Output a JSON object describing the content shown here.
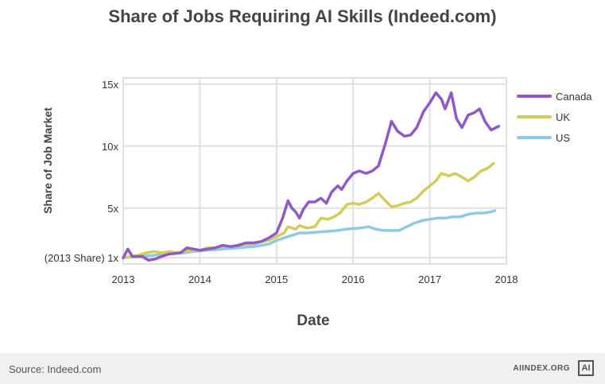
{
  "header": {
    "title": "Share of Jobs Requiring AI Skills (Indeed.com)"
  },
  "footer": {
    "source": "Source: Indeed.com",
    "brand": "AIINDEX.ORG",
    "logo_text": "AI"
  },
  "chart_data": {
    "type": "line",
    "title": "Share of Jobs Requiring AI Skills (Indeed.com)",
    "xlabel": "Date",
    "ylabel": "Share of Job Market",
    "xlim": [
      2013,
      2018
    ],
    "ylim": [
      0.5,
      15.5
    ],
    "xticks": [
      2013,
      2014,
      2015,
      2016,
      2017,
      2018
    ],
    "yticks": [
      {
        "value": 1,
        "label": "(2013 Share) 1x"
      },
      {
        "value": 5,
        "label": "5x"
      },
      {
        "value": 10,
        "label": "10x"
      },
      {
        "value": 15,
        "label": "15x"
      }
    ],
    "grid": true,
    "legend_position": "right",
    "series": [
      {
        "name": "Canada",
        "color": "#8e5ac8",
        "points": [
          [
            2013.0,
            1.0
          ],
          [
            2013.06,
            1.7
          ],
          [
            2013.12,
            1.1
          ],
          [
            2013.25,
            1.1
          ],
          [
            2013.33,
            0.8
          ],
          [
            2013.42,
            0.9
          ],
          [
            2013.5,
            1.1
          ],
          [
            2013.6,
            1.3
          ],
          [
            2013.75,
            1.4
          ],
          [
            2013.83,
            1.8
          ],
          [
            2013.92,
            1.7
          ],
          [
            2014.0,
            1.6
          ],
          [
            2014.1,
            1.7
          ],
          [
            2014.2,
            1.8
          ],
          [
            2014.3,
            2.0
          ],
          [
            2014.4,
            1.9
          ],
          [
            2014.5,
            2.0
          ],
          [
            2014.6,
            2.2
          ],
          [
            2014.7,
            2.2
          ],
          [
            2014.8,
            2.3
          ],
          [
            2014.9,
            2.6
          ],
          [
            2015.0,
            3.0
          ],
          [
            2015.08,
            4.2
          ],
          [
            2015.15,
            5.6
          ],
          [
            2015.2,
            5.0
          ],
          [
            2015.25,
            4.7
          ],
          [
            2015.3,
            4.2
          ],
          [
            2015.35,
            4.9
          ],
          [
            2015.42,
            5.5
          ],
          [
            2015.5,
            5.5
          ],
          [
            2015.58,
            5.8
          ],
          [
            2015.65,
            5.4
          ],
          [
            2015.72,
            6.3
          ],
          [
            2015.8,
            6.8
          ],
          [
            2015.85,
            6.5
          ],
          [
            2015.92,
            7.2
          ],
          [
            2016.0,
            7.8
          ],
          [
            2016.08,
            8.0
          ],
          [
            2016.17,
            7.8
          ],
          [
            2016.25,
            8.0
          ],
          [
            2016.33,
            8.4
          ],
          [
            2016.42,
            10.2
          ],
          [
            2016.5,
            12.0
          ],
          [
            2016.58,
            11.2
          ],
          [
            2016.67,
            10.8
          ],
          [
            2016.75,
            10.9
          ],
          [
            2016.83,
            11.5
          ],
          [
            2016.92,
            12.8
          ],
          [
            2017.0,
            13.5
          ],
          [
            2017.08,
            14.3
          ],
          [
            2017.15,
            13.8
          ],
          [
            2017.2,
            13.0
          ],
          [
            2017.28,
            14.3
          ],
          [
            2017.35,
            12.2
          ],
          [
            2017.42,
            11.5
          ],
          [
            2017.5,
            12.5
          ],
          [
            2017.58,
            12.7
          ],
          [
            2017.65,
            13.0
          ],
          [
            2017.72,
            12.0
          ],
          [
            2017.8,
            11.3
          ],
          [
            2017.9,
            11.6
          ]
        ]
      },
      {
        "name": "UK",
        "color": "#d4cc5a",
        "points": [
          [
            2013.0,
            1.0
          ],
          [
            2013.1,
            1.1
          ],
          [
            2013.2,
            1.2
          ],
          [
            2013.3,
            1.4
          ],
          [
            2013.4,
            1.5
          ],
          [
            2013.5,
            1.4
          ],
          [
            2013.6,
            1.5
          ],
          [
            2013.7,
            1.4
          ],
          [
            2013.8,
            1.5
          ],
          [
            2013.9,
            1.6
          ],
          [
            2014.0,
            1.6
          ],
          [
            2014.1,
            1.8
          ],
          [
            2014.2,
            1.8
          ],
          [
            2014.3,
            1.9
          ],
          [
            2014.4,
            1.9
          ],
          [
            2014.5,
            2.0
          ],
          [
            2014.6,
            2.1
          ],
          [
            2014.7,
            2.1
          ],
          [
            2014.8,
            2.3
          ],
          [
            2014.9,
            2.4
          ],
          [
            2015.0,
            2.7
          ],
          [
            2015.1,
            3.0
          ],
          [
            2015.15,
            3.5
          ],
          [
            2015.25,
            3.3
          ],
          [
            2015.3,
            3.6
          ],
          [
            2015.4,
            3.4
          ],
          [
            2015.5,
            3.5
          ],
          [
            2015.58,
            4.2
          ],
          [
            2015.67,
            4.1
          ],
          [
            2015.75,
            4.3
          ],
          [
            2015.83,
            4.6
          ],
          [
            2015.92,
            5.3
          ],
          [
            2016.0,
            5.4
          ],
          [
            2016.08,
            5.3
          ],
          [
            2016.17,
            5.5
          ],
          [
            2016.25,
            5.8
          ],
          [
            2016.33,
            6.2
          ],
          [
            2016.42,
            5.6
          ],
          [
            2016.5,
            5.1
          ],
          [
            2016.58,
            5.2
          ],
          [
            2016.67,
            5.4
          ],
          [
            2016.75,
            5.5
          ],
          [
            2016.83,
            5.8
          ],
          [
            2016.92,
            6.4
          ],
          [
            2017.0,
            6.8
          ],
          [
            2017.08,
            7.2
          ],
          [
            2017.15,
            7.8
          ],
          [
            2017.25,
            7.6
          ],
          [
            2017.33,
            7.8
          ],
          [
            2017.42,
            7.5
          ],
          [
            2017.5,
            7.2
          ],
          [
            2017.58,
            7.5
          ],
          [
            2017.67,
            8.0
          ],
          [
            2017.75,
            8.2
          ],
          [
            2017.83,
            8.6
          ]
        ]
      },
      {
        "name": "US",
        "color": "#8ec9e6",
        "points": [
          [
            2013.0,
            1.0
          ],
          [
            2013.1,
            1.05
          ],
          [
            2013.2,
            1.1
          ],
          [
            2013.3,
            1.15
          ],
          [
            2013.4,
            1.2
          ],
          [
            2013.5,
            1.25
          ],
          [
            2013.6,
            1.3
          ],
          [
            2013.7,
            1.35
          ],
          [
            2013.8,
            1.4
          ],
          [
            2013.9,
            1.5
          ],
          [
            2014.0,
            1.55
          ],
          [
            2014.1,
            1.6
          ],
          [
            2014.2,
            1.65
          ],
          [
            2014.3,
            1.7
          ],
          [
            2014.4,
            1.75
          ],
          [
            2014.5,
            1.8
          ],
          [
            2014.6,
            1.85
          ],
          [
            2014.7,
            1.9
          ],
          [
            2014.8,
            2.0
          ],
          [
            2014.9,
            2.1
          ],
          [
            2015.0,
            2.4
          ],
          [
            2015.1,
            2.6
          ],
          [
            2015.2,
            2.8
          ],
          [
            2015.3,
            3.0
          ],
          [
            2015.4,
            3.0
          ],
          [
            2015.5,
            3.05
          ],
          [
            2015.6,
            3.1
          ],
          [
            2015.7,
            3.15
          ],
          [
            2015.8,
            3.2
          ],
          [
            2015.9,
            3.3
          ],
          [
            2016.0,
            3.35
          ],
          [
            2016.1,
            3.4
          ],
          [
            2016.2,
            3.5
          ],
          [
            2016.3,
            3.3
          ],
          [
            2016.4,
            3.2
          ],
          [
            2016.5,
            3.2
          ],
          [
            2016.6,
            3.2
          ],
          [
            2016.7,
            3.5
          ],
          [
            2016.8,
            3.8
          ],
          [
            2016.9,
            4.0
          ],
          [
            2017.0,
            4.1
          ],
          [
            2017.1,
            4.2
          ],
          [
            2017.2,
            4.2
          ],
          [
            2017.3,
            4.3
          ],
          [
            2017.4,
            4.3
          ],
          [
            2017.5,
            4.5
          ],
          [
            2017.6,
            4.6
          ],
          [
            2017.7,
            4.6
          ],
          [
            2017.8,
            4.7
          ],
          [
            2017.85,
            4.8
          ]
        ]
      }
    ]
  }
}
